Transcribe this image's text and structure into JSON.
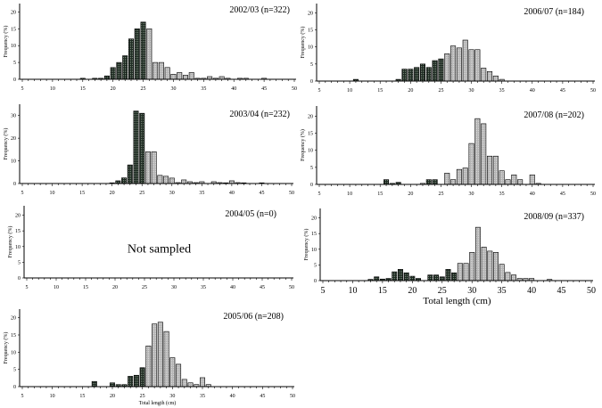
{
  "chart_data": [
    {
      "type": "bar",
      "title": "2002/03 (n=322)",
      "ylabel": "Frequency (%)",
      "xlabel": "",
      "xlim": [
        5,
        50
      ],
      "ylim": [
        0,
        22.5
      ],
      "yticks": [
        0,
        5,
        10,
        15,
        20
      ],
      "xticks": [
        5,
        10,
        15,
        20,
        25,
        30,
        35,
        40,
        45,
        50
      ],
      "dark_bars": [
        [
          15,
          0.3
        ],
        [
          17,
          0.3
        ],
        [
          18,
          0.3
        ],
        [
          19,
          1
        ],
        [
          20,
          3.5
        ],
        [
          21,
          5
        ],
        [
          22,
          7
        ],
        [
          23,
          12
        ],
        [
          24,
          15
        ],
        [
          25,
          17
        ]
      ],
      "light_bars": [
        [
          26,
          15
        ],
        [
          27,
          5
        ],
        [
          28,
          5
        ],
        [
          29,
          3.5
        ],
        [
          30,
          1.5
        ],
        [
          31,
          2
        ],
        [
          32,
          1.2
        ],
        [
          33,
          2
        ],
        [
          34,
          0.3
        ],
        [
          35,
          0.3
        ],
        [
          36,
          0.8
        ],
        [
          37,
          0.3
        ],
        [
          38,
          0.8
        ],
        [
          39,
          0.3
        ],
        [
          41,
          0.3
        ],
        [
          42,
          0.3
        ],
        [
          45,
          0.3
        ]
      ],
      "note": ""
    },
    {
      "type": "bar",
      "title": "2003/04 (n=232)",
      "ylabel": "Frequency (%)",
      "xlabel": "",
      "xlim": [
        5,
        50
      ],
      "ylim": [
        0,
        35
      ],
      "yticks": [
        0,
        10,
        20,
        30
      ],
      "xticks": [
        5,
        10,
        15,
        20,
        25,
        30,
        35,
        40,
        45,
        50
      ],
      "dark_bars": [
        [
          20,
          0.3
        ],
        [
          21,
          1.2
        ],
        [
          22,
          2.5
        ],
        [
          23,
          8.2
        ],
        [
          24,
          32
        ],
        [
          25,
          31
        ]
      ],
      "light_bars": [
        [
          26,
          14
        ],
        [
          27,
          14
        ],
        [
          28,
          3.6
        ],
        [
          29,
          3.2
        ],
        [
          30,
          2.4
        ],
        [
          31,
          0.4
        ],
        [
          32,
          1.6
        ],
        [
          33,
          0.8
        ],
        [
          34,
          0.4
        ],
        [
          35,
          0.8
        ],
        [
          37,
          0.8
        ],
        [
          38,
          0.4
        ],
        [
          39,
          0.3
        ],
        [
          40,
          1.2
        ],
        [
          41,
          0.4
        ],
        [
          42,
          0.3
        ],
        [
          45,
          0.3
        ]
      ],
      "note": ""
    },
    {
      "type": "bar",
      "title": "2004/05 (n=0)",
      "ylabel": "Frequency (%)",
      "xlabel": "",
      "xlim": [
        5,
        50
      ],
      "ylim": [
        0,
        23
      ],
      "yticks": [
        0,
        5,
        10,
        15,
        20
      ],
      "xticks": [
        5,
        10,
        15,
        20,
        25,
        30,
        35,
        40,
        45,
        50
      ],
      "dark_bars": [],
      "light_bars": [],
      "note": "Not sampled"
    },
    {
      "type": "bar",
      "title": "2005/06 (n=208)",
      "ylabel": "Frequency (%)",
      "xlabel": "Total length (cm)",
      "xlim": [
        5,
        50
      ],
      "ylim": [
        0,
        22.5
      ],
      "yticks": [
        0,
        5,
        10,
        15,
        20
      ],
      "xticks": [
        5,
        10,
        15,
        20,
        25,
        30,
        35,
        40,
        45,
        50
      ],
      "dark_bars": [
        [
          17,
          1.5
        ],
        [
          20,
          1.1
        ],
        [
          21,
          0.6
        ],
        [
          22,
          0.6
        ],
        [
          23,
          3
        ],
        [
          24,
          3.3
        ],
        [
          25,
          5.5
        ]
      ],
      "light_bars": [
        [
          26,
          11.8
        ],
        [
          27,
          18.2
        ],
        [
          28,
          18.7
        ],
        [
          29,
          16
        ],
        [
          30,
          8.4
        ],
        [
          31,
          6.5
        ],
        [
          32,
          2.1
        ],
        [
          33,
          1.1
        ],
        [
          34,
          0.6
        ],
        [
          35,
          2.6
        ],
        [
          36,
          0.6
        ]
      ],
      "note": ""
    },
    {
      "type": "bar",
      "title": "2006/07 (n=184)",
      "ylabel": "Frequency (%)",
      "xlabel": "",
      "xlim": [
        5,
        50
      ],
      "ylim": [
        0,
        22.7
      ],
      "yticks": [
        0,
        5,
        10,
        15,
        20
      ],
      "xticks": [
        5,
        10,
        15,
        20,
        25,
        30,
        35,
        40,
        45,
        50
      ],
      "dark_bars": [
        [
          11,
          0.5
        ],
        [
          18,
          0.5
        ],
        [
          19,
          3.5
        ],
        [
          20,
          3.5
        ],
        [
          21,
          4
        ],
        [
          22,
          5
        ],
        [
          23,
          4
        ],
        [
          24,
          6
        ],
        [
          25,
          6.5
        ]
      ],
      "light_bars": [
        [
          26,
          8
        ],
        [
          27,
          10.3
        ],
        [
          28,
          9.7
        ],
        [
          29,
          12
        ],
        [
          30,
          9.2
        ],
        [
          31,
          9.2
        ],
        [
          32,
          3.8
        ],
        [
          33,
          2.8
        ],
        [
          34,
          1.5
        ],
        [
          35,
          0.5
        ]
      ],
      "note": ""
    },
    {
      "type": "bar",
      "title": "2007/08 (n=202)",
      "ylabel": "Frequency (%)",
      "xlabel": "",
      "xlim": [
        5,
        50
      ],
      "ylim": [
        0,
        23
      ],
      "yticks": [
        0,
        5,
        10,
        15,
        20
      ],
      "xticks": [
        5,
        10,
        15,
        20,
        25,
        30,
        35,
        40,
        45,
        50
      ],
      "dark_bars": [
        [
          16,
          1.4
        ],
        [
          17,
          0.3
        ],
        [
          18,
          0.6
        ],
        [
          23,
          1.4
        ],
        [
          24,
          1.4
        ]
      ],
      "light_bars": [
        [
          22,
          0.3
        ],
        [
          26,
          3.3
        ],
        [
          27,
          1.4
        ],
        [
          28,
          4.4
        ],
        [
          29,
          4.8
        ],
        [
          30,
          12
        ],
        [
          31,
          19.3
        ],
        [
          32,
          17.8
        ],
        [
          33,
          8.3
        ],
        [
          34,
          8.3
        ],
        [
          35,
          4
        ],
        [
          36,
          1.4
        ],
        [
          37,
          2.8
        ],
        [
          38,
          1.4
        ],
        [
          40,
          2.8
        ],
        [
          41,
          0.3
        ]
      ],
      "note": ""
    },
    {
      "type": "bar",
      "title": "2008/09 (n=337)",
      "ylabel": "Frequency (%)",
      "xlabel": "Total length (cm)",
      "xlim": [
        5,
        50
      ],
      "ylim": [
        0,
        23
      ],
      "yticks": [
        0,
        5,
        10,
        15,
        20
      ],
      "xticks": [
        5,
        10,
        15,
        20,
        25,
        30,
        35,
        40,
        45,
        50
      ],
      "dark_bars": [
        [
          13,
          0.4
        ],
        [
          14,
          1.2
        ],
        [
          15,
          0.5
        ],
        [
          16,
          0.7
        ],
        [
          17,
          2.8
        ],
        [
          18,
          3.6
        ],
        [
          19,
          2.5
        ],
        [
          20,
          1.4
        ],
        [
          21,
          0.7
        ],
        [
          23,
          1.8
        ],
        [
          24,
          1.8
        ],
        [
          25,
          1.2
        ],
        [
          26,
          3.6
        ],
        [
          27,
          2.5
        ]
      ],
      "light_bars": [
        [
          28,
          5.5
        ],
        [
          29,
          5.5
        ],
        [
          30,
          9
        ],
        [
          31,
          17
        ],
        [
          32,
          10.7
        ],
        [
          33,
          9.4
        ],
        [
          34,
          9
        ],
        [
          35,
          5.2
        ],
        [
          36,
          2.6
        ],
        [
          37,
          1.8
        ],
        [
          38,
          0.7
        ],
        [
          39,
          0.7
        ],
        [
          40,
          0.7
        ],
        [
          43,
          0.4
        ]
      ],
      "note": ""
    }
  ],
  "colors": {
    "dark_bar": "#1e2a22",
    "light_bar": "#b4b4b4",
    "axis": "#000000"
  }
}
